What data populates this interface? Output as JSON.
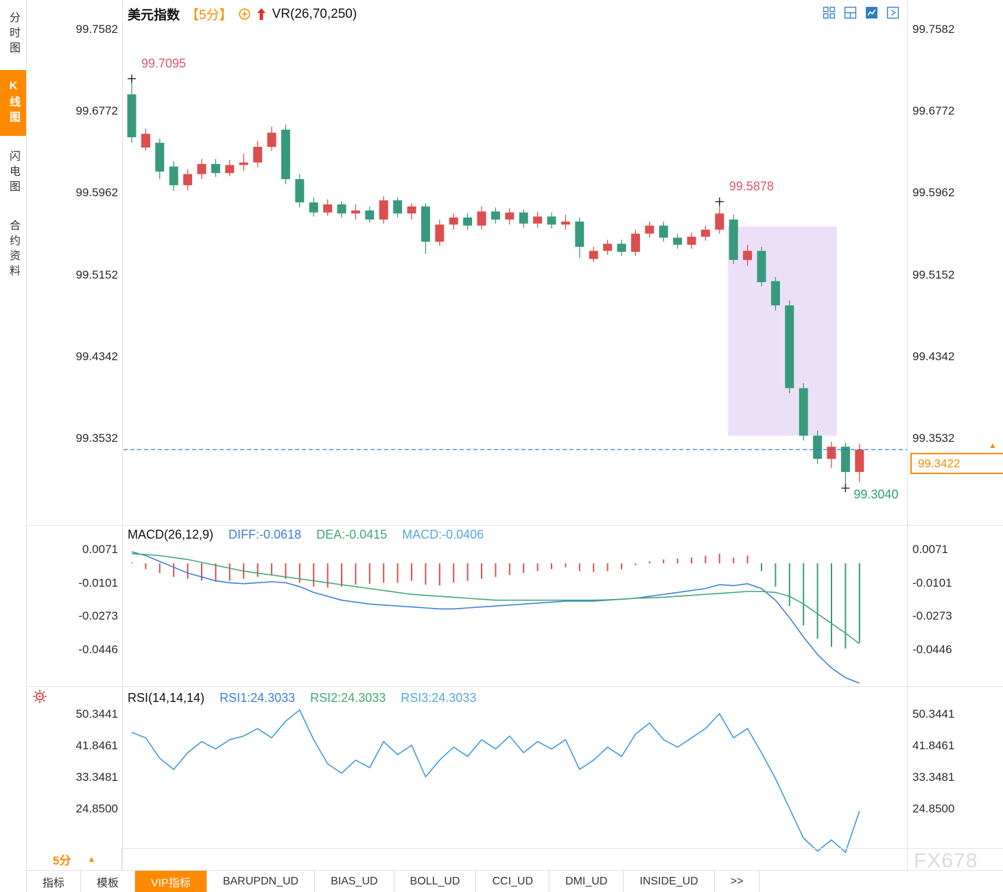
{
  "app": {
    "watermark": "FX678"
  },
  "sidebar": {
    "tabs": [
      {
        "label": "分时图",
        "active": false
      },
      {
        "label": "K线图",
        "active": true
      },
      {
        "label": "闪电图",
        "active": false
      },
      {
        "label": "合约资料",
        "active": false
      }
    ]
  },
  "header": {
    "symbol": "美元指数",
    "interval": "【5分】",
    "indicator": "VR(26,70,250)",
    "icons": [
      "circle-plus-icon",
      "up-arrow-icon"
    ]
  },
  "toolbar": {
    "icons": [
      "layout-quad-icon",
      "layout-split-icon",
      "layout-chart-icon",
      "layout-next-icon"
    ],
    "active_icon": "layout-chart-icon"
  },
  "price_tag": {
    "value": "99.3422",
    "arrow": "▲"
  },
  "interval_selector": {
    "label": "5分",
    "arrow": "▲"
  },
  "bottom_tabs": {
    "items": [
      {
        "label": "指标",
        "active": false
      },
      {
        "label": "模板",
        "active": false
      },
      {
        "label": "VIP指标",
        "active": true
      },
      {
        "label": "BARUPDN_UD",
        "active": false
      },
      {
        "label": "BIAS_UD",
        "active": false
      },
      {
        "label": "BOLL_UD",
        "active": false
      },
      {
        "label": "CCI_UD",
        "active": false
      },
      {
        "label": "DMI_UD",
        "active": false
      },
      {
        "label": "INSIDE_UD",
        "active": false
      },
      {
        "label": ">>",
        "active": false
      }
    ]
  },
  "colors": {
    "accent_orange": "#ff8a00",
    "up": "#dd4e4e",
    "down": "#389a7c",
    "dashed_line": "#1a6fdc",
    "zone": "#dcc6f2",
    "blue": "#3d7fd9",
    "green": "#3fa873",
    "light_blue": "#54a8e0"
  },
  "chart_data": [
    {
      "type": "candlestick",
      "title": "美元指数",
      "interval": "5分",
      "overlay_indicator": "VR(26,70,250)",
      "y_ticks": [
        99.7582,
        99.6772,
        99.5962,
        99.5152,
        99.4342,
        99.3532
      ],
      "ylim": [
        99.3,
        99.7582
      ],
      "up_color": "#dd4e4e",
      "down_color": "#389a7c",
      "candles": [
        [
          99.694,
          99.7095,
          99.646,
          99.6515
        ],
        [
          99.6413,
          99.66,
          99.638,
          99.6549
        ],
        [
          99.646,
          99.65,
          99.61,
          99.6175
        ],
        [
          99.6225,
          99.628,
          99.598,
          99.604
        ],
        [
          99.604,
          99.62,
          99.599,
          99.615
        ],
        [
          99.615,
          99.63,
          99.61,
          99.625
        ],
        [
          99.625,
          99.63,
          99.612,
          99.616
        ],
        [
          99.616,
          99.629,
          99.613,
          99.624
        ],
        [
          99.624,
          99.635,
          99.618,
          99.6265
        ],
        [
          99.6265,
          99.648,
          99.622,
          99.642
        ],
        [
          99.642,
          99.662,
          99.638,
          99.656
        ],
        [
          99.659,
          99.664,
          99.605,
          99.61
        ],
        [
          99.61,
          99.615,
          99.582,
          99.587
        ],
        [
          99.587,
          99.592,
          99.573,
          99.577
        ],
        [
          99.577,
          99.59,
          99.574,
          99.585
        ],
        [
          99.585,
          99.588,
          99.572,
          99.576
        ],
        [
          99.576,
          99.585,
          99.57,
          99.579
        ],
        [
          99.579,
          99.583,
          99.567,
          99.57
        ],
        [
          99.57,
          99.593,
          99.566,
          99.589
        ],
        [
          99.589,
          99.592,
          99.572,
          99.576
        ],
        [
          99.576,
          99.586,
          99.57,
          99.583
        ],
        [
          99.583,
          99.586,
          99.536,
          99.548
        ],
        [
          99.548,
          99.57,
          99.544,
          99.565
        ],
        [
          99.565,
          99.576,
          99.56,
          99.572
        ],
        [
          99.572,
          99.576,
          99.56,
          99.564
        ],
        [
          99.564,
          99.583,
          99.56,
          99.578
        ],
        [
          99.578,
          99.582,
          99.566,
          99.57
        ],
        [
          99.57,
          99.581,
          99.565,
          99.577
        ],
        [
          99.577,
          99.58,
          99.562,
          99.566
        ],
        [
          99.566,
          99.578,
          99.562,
          99.573
        ],
        [
          99.573,
          99.577,
          99.561,
          99.565
        ],
        [
          99.565,
          99.575,
          99.56,
          99.568
        ],
        [
          99.568,
          99.572,
          99.532,
          99.543
        ],
        [
          99.531,
          99.543,
          99.528,
          99.539
        ],
        [
          99.539,
          99.55,
          99.535,
          99.546
        ],
        [
          99.546,
          99.55,
          99.534,
          99.538
        ],
        [
          99.538,
          99.56,
          99.534,
          99.556
        ],
        [
          99.556,
          99.568,
          99.552,
          99.564
        ],
        [
          99.564,
          99.568,
          99.548,
          99.552
        ],
        [
          99.552,
          99.556,
          99.541,
          99.545
        ],
        [
          99.545,
          99.557,
          99.541,
          99.553
        ],
        [
          99.553,
          99.564,
          99.549,
          99.56
        ],
        [
          99.56,
          99.5878,
          99.556,
          99.576
        ],
        [
          99.57,
          99.575,
          99.526,
          99.53
        ],
        [
          99.53,
          99.545,
          99.524,
          99.539
        ],
        [
          99.539,
          99.543,
          99.504,
          99.508
        ],
        [
          99.509,
          99.513,
          99.48,
          99.485
        ],
        [
          99.485,
          99.49,
          99.398,
          99.403
        ],
        [
          99.403,
          99.408,
          99.351,
          99.356
        ],
        [
          99.356,
          99.361,
          99.328,
          99.333
        ],
        [
          99.333,
          99.35,
          99.324,
          99.345
        ],
        [
          99.345,
          99.349,
          99.304,
          99.32
        ],
        [
          99.32,
          99.348,
          99.31,
          99.3422
        ]
      ],
      "annotations": {
        "high": {
          "label": "99.7095",
          "index": 0,
          "price": 99.7095,
          "color": "#e0566c"
        },
        "swing_high": {
          "label": "99.5878",
          "index": 42,
          "price": 99.5878,
          "color": "#e0566c"
        },
        "low": {
          "label": "99.3040",
          "index": 51,
          "price": 99.304,
          "color": "#2aa070"
        },
        "last_price": {
          "label": "99.3422",
          "price": 99.3422,
          "color": "#ff8a00"
        }
      },
      "highlight_zone": {
        "from_index": 43,
        "to_index": 50,
        "top_price": 99.563,
        "bottom_price": 99.356,
        "color": "#dcc6f2"
      }
    },
    {
      "type": "bar",
      "title": "MACD(26,12,9)",
      "legend": [
        {
          "label": "DIFF:-0.0618",
          "color": "#3d7fd9"
        },
        {
          "label": "DEA:-0.0415",
          "color": "#3fa873"
        },
        {
          "label": "MACD:-0.0406",
          "color": "#54a8e0"
        }
      ],
      "y_ticks": [
        0.0071,
        -0.0101,
        -0.0273,
        -0.0446
      ],
      "bar_colors": {
        "r": "#d94f4f",
        "g": "#389a7c"
      },
      "histogram": [
        [
          0.0005,
          "r"
        ],
        [
          -0.003,
          "r"
        ],
        [
          -0.005,
          "r"
        ],
        [
          -0.007,
          "r"
        ],
        [
          -0.008,
          "r"
        ],
        [
          -0.009,
          "r"
        ],
        [
          -0.0095,
          "r"
        ],
        [
          -0.009,
          "r"
        ],
        [
          -0.008,
          "r"
        ],
        [
          -0.007,
          "r"
        ],
        [
          -0.006,
          "r"
        ],
        [
          -0.008,
          "r"
        ],
        [
          -0.01,
          "r"
        ],
        [
          -0.012,
          "r"
        ],
        [
          -0.0125,
          "r"
        ],
        [
          -0.012,
          "r"
        ],
        [
          -0.011,
          "r"
        ],
        [
          -0.0105,
          "r"
        ],
        [
          -0.01,
          "r"
        ],
        [
          -0.01,
          "r"
        ],
        [
          -0.009,
          "r"
        ],
        [
          -0.011,
          "r"
        ],
        [
          -0.0115,
          "r"
        ],
        [
          -0.01,
          "r"
        ],
        [
          -0.009,
          "r"
        ],
        [
          -0.008,
          "r"
        ],
        [
          -0.007,
          "r"
        ],
        [
          -0.006,
          "r"
        ],
        [
          -0.005,
          "r"
        ],
        [
          -0.004,
          "r"
        ],
        [
          -0.003,
          "r"
        ],
        [
          -0.002,
          "r"
        ],
        [
          -0.004,
          "r"
        ],
        [
          -0.0045,
          "r"
        ],
        [
          -0.004,
          "r"
        ],
        [
          -0.003,
          "r"
        ],
        [
          -0.001,
          "r"
        ],
        [
          0.001,
          "r"
        ],
        [
          0.002,
          "r"
        ],
        [
          0.0025,
          "r"
        ],
        [
          0.003,
          "r"
        ],
        [
          0.004,
          "r"
        ],
        [
          0.005,
          "r"
        ],
        [
          0.003,
          "r"
        ],
        [
          0.004,
          "r"
        ],
        [
          -0.004,
          "g"
        ],
        [
          -0.012,
          "g"
        ],
        [
          -0.022,
          "g"
        ],
        [
          -0.032,
          "g"
        ],
        [
          -0.039,
          "g"
        ],
        [
          -0.043,
          "g"
        ],
        [
          -0.044,
          "g"
        ],
        [
          -0.041,
          "g"
        ]
      ],
      "series": [
        {
          "name": "DIFF",
          "color": "#3d7fd9",
          "values": [
            0.006,
            0.004,
            0.001,
            -0.002,
            -0.005,
            -0.007,
            -0.009,
            -0.01,
            -0.0105,
            -0.01,
            -0.0095,
            -0.01,
            -0.012,
            -0.015,
            -0.017,
            -0.019,
            -0.02,
            -0.021,
            -0.0215,
            -0.022,
            -0.0225,
            -0.023,
            -0.0235,
            -0.0235,
            -0.023,
            -0.0225,
            -0.022,
            -0.0215,
            -0.021,
            -0.0205,
            -0.02,
            -0.0195,
            -0.0195,
            -0.0195,
            -0.019,
            -0.0185,
            -0.018,
            -0.017,
            -0.016,
            -0.015,
            -0.014,
            -0.013,
            -0.011,
            -0.0115,
            -0.0105,
            -0.013,
            -0.019,
            -0.028,
            -0.038,
            -0.047,
            -0.054,
            -0.059,
            -0.0618
          ]
        },
        {
          "name": "DEA",
          "color": "#3fa873",
          "values": [
            0.005,
            0.0045,
            0.004,
            0.003,
            0.002,
            0.0005,
            -0.001,
            -0.0025,
            -0.004,
            -0.005,
            -0.006,
            -0.007,
            -0.008,
            -0.009,
            -0.01,
            -0.011,
            -0.012,
            -0.013,
            -0.014,
            -0.015,
            -0.016,
            -0.0165,
            -0.017,
            -0.0175,
            -0.018,
            -0.0185,
            -0.019,
            -0.019,
            -0.019,
            -0.019,
            -0.019,
            -0.019,
            -0.019,
            -0.019,
            -0.0188,
            -0.0185,
            -0.018,
            -0.0178,
            -0.0175,
            -0.017,
            -0.0165,
            -0.016,
            -0.0155,
            -0.015,
            -0.0145,
            -0.0145,
            -0.015,
            -0.017,
            -0.021,
            -0.026,
            -0.031,
            -0.036,
            -0.0415
          ]
        }
      ]
    },
    {
      "type": "line",
      "title": "RSI(14,14,14)",
      "legend": [
        {
          "label": "RSI1:24.3033",
          "color": "#3d7fd9"
        },
        {
          "label": "RSI2:24.3033",
          "color": "#3fa873"
        },
        {
          "label": "RSI3:24.3033",
          "color": "#54a8e0"
        }
      ],
      "y_ticks": [
        50.3441,
        41.8461,
        33.3481,
        24.85
      ],
      "series": [
        {
          "name": "RSI1",
          "color": "#3d9ad9",
          "values": [
            45.5,
            44,
            38.5,
            35.5,
            40,
            43,
            41,
            43.5,
            44.5,
            46.5,
            44,
            48.5,
            51.5,
            43.5,
            37,
            34.5,
            38,
            36,
            43,
            39.5,
            42,
            33.5,
            38,
            41.5,
            39,
            43.5,
            41,
            44.5,
            40,
            43,
            41,
            43.5,
            35.5,
            38,
            41.5,
            39,
            45,
            48,
            43.5,
            41.5,
            44,
            46.5,
            50.5,
            44,
            46.5,
            40,
            33,
            25,
            17,
            13.5,
            16.5,
            13.2,
            24.3
          ]
        }
      ]
    }
  ]
}
